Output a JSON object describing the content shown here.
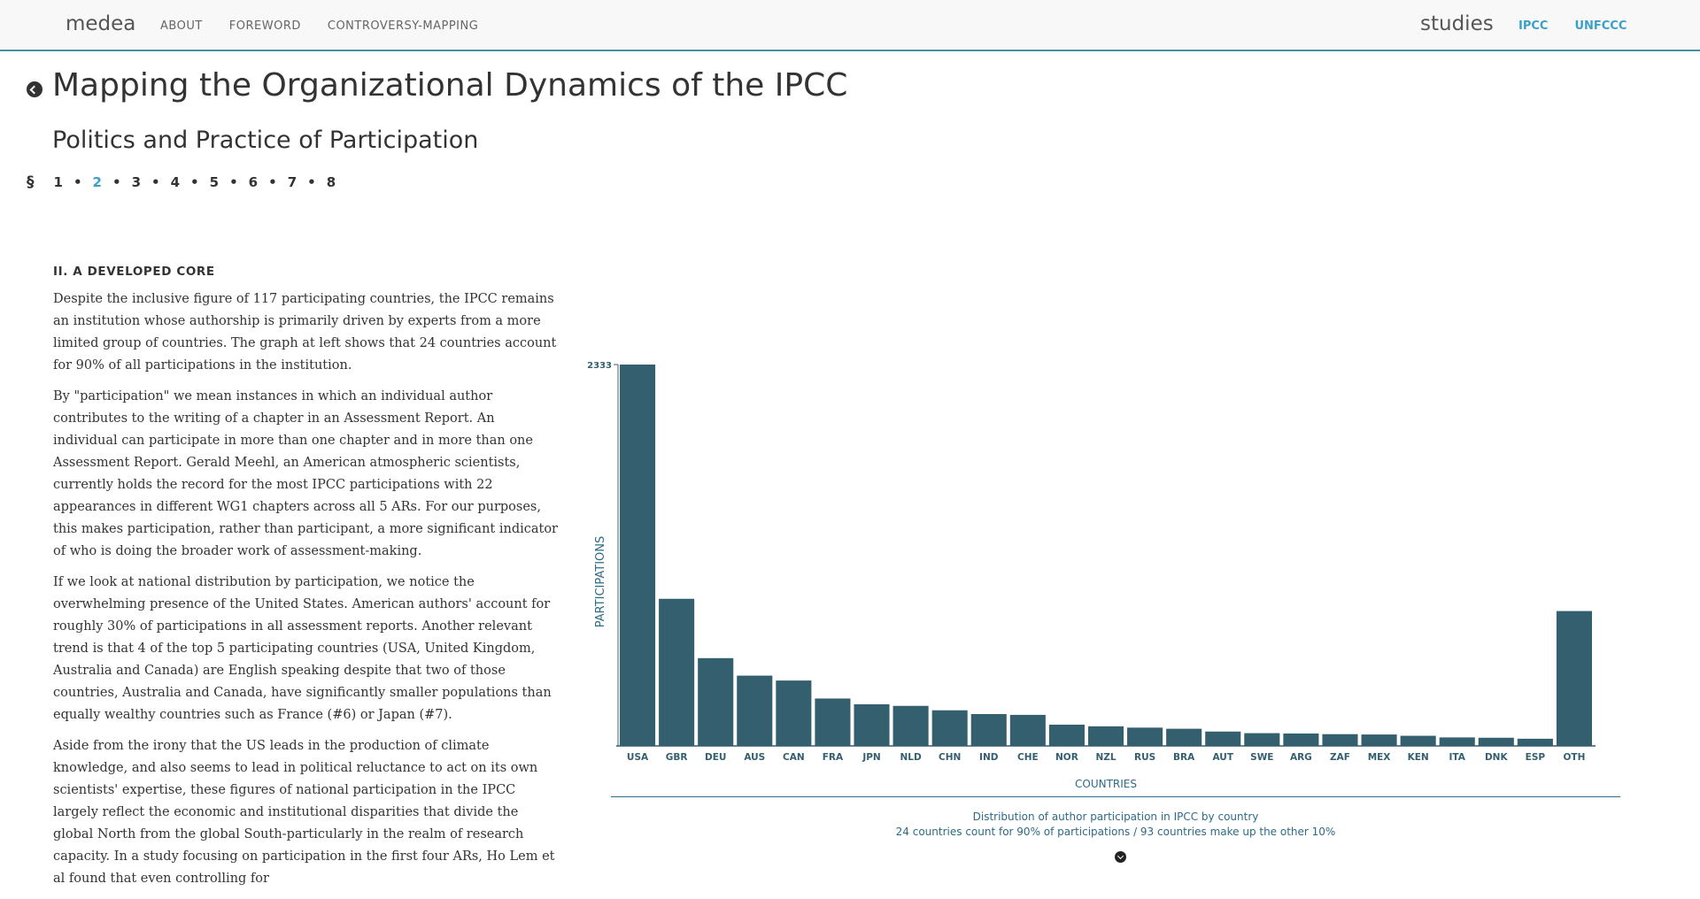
{
  "nav": {
    "brand": "medea",
    "links": [
      "ABOUT",
      "FOREWORD",
      "CONTROVERSY-MAPPING"
    ],
    "right_title": "studies",
    "right_links": [
      "IPCC",
      "UNFCCC"
    ]
  },
  "page": {
    "title": "Mapping the Organizational Dynamics of the IPCC",
    "subtitle": "Politics and Practice of Participation"
  },
  "sections": {
    "symbol": "§",
    "items": [
      "1",
      "2",
      "3",
      "4",
      "5",
      "6",
      "7",
      "8"
    ],
    "active": "2"
  },
  "article": {
    "heading": "II. A DEVELOPED CORE",
    "paragraphs": [
      "Despite the inclusive figure of 117 participating countries, the IPCC remains an institution whose authorship is primarily driven by experts from a more limited group of countries. The graph at left shows that 24 countries account for 90% of all participations in the institution.",
      "By \"participation\" we mean instances in which an individual author contributes to the writing of a chapter in an Assessment Report. An individual can participate in more than one chapter and in more than one Assessment Report. Gerald Meehl, an American atmospheric scientists, currently holds the record for the most IPCC participations with 22 appearances in different WG1 chapters across all 5 ARs. For our purposes, this makes participation, rather than participant, a more significant indicator of who is doing the broader work of assessment-making.",
      "If we look at national distribution by participation, we notice the overwhelming presence of the United States. American authors' account for roughly 30% of participations in all assessment reports. Another relevant trend is that 4 of the top 5 participating countries (USA, United Kingdom, Australia and Canada) are English speaking despite that two of those countries, Australia and Canada, have significantly smaller populations than equally wealthy countries such as France (#6) or Japan (#7).",
      "Aside from the irony that the US leads in the production of climate knowledge, and also seems to lead in political reluctance to act on its own scientists' expertise, these figures of national participation in the IPCC largely reflect the economic and institutional disparities that divide the global North from the global South-particularly in the realm of research capacity. In a study focusing on participation in the first four ARs, Ho Lem et al found that even controlling for"
    ]
  },
  "chart_data": {
    "type": "bar",
    "title": "Distribution of author participation in IPCC by country",
    "subtitle": "24 countries count for 90% of participations / 93 countries make up the other 10%",
    "xlabel": "COUNTRIES",
    "ylabel": "PARTICIPATIONS",
    "y_tick_label": "2333",
    "ylim": [
      0,
      2333
    ],
    "bar_color": "#345f6e",
    "categories": [
      "USA",
      "GBR",
      "DEU",
      "AUS",
      "CAN",
      "FRA",
      "JPN",
      "NLD",
      "CHN",
      "IND",
      "CHE",
      "NOR",
      "NZL",
      "RUS",
      "BRA",
      "AUT",
      "SWE",
      "ARG",
      "ZAF",
      "MEX",
      "KEN",
      "ITA",
      "DNK",
      "ESP",
      "OTH"
    ],
    "values": [
      2333,
      900,
      537,
      430,
      400,
      290,
      255,
      245,
      218,
      195,
      190,
      130,
      120,
      112,
      105,
      88,
      78,
      76,
      72,
      70,
      62,
      52,
      50,
      44,
      825
    ]
  }
}
